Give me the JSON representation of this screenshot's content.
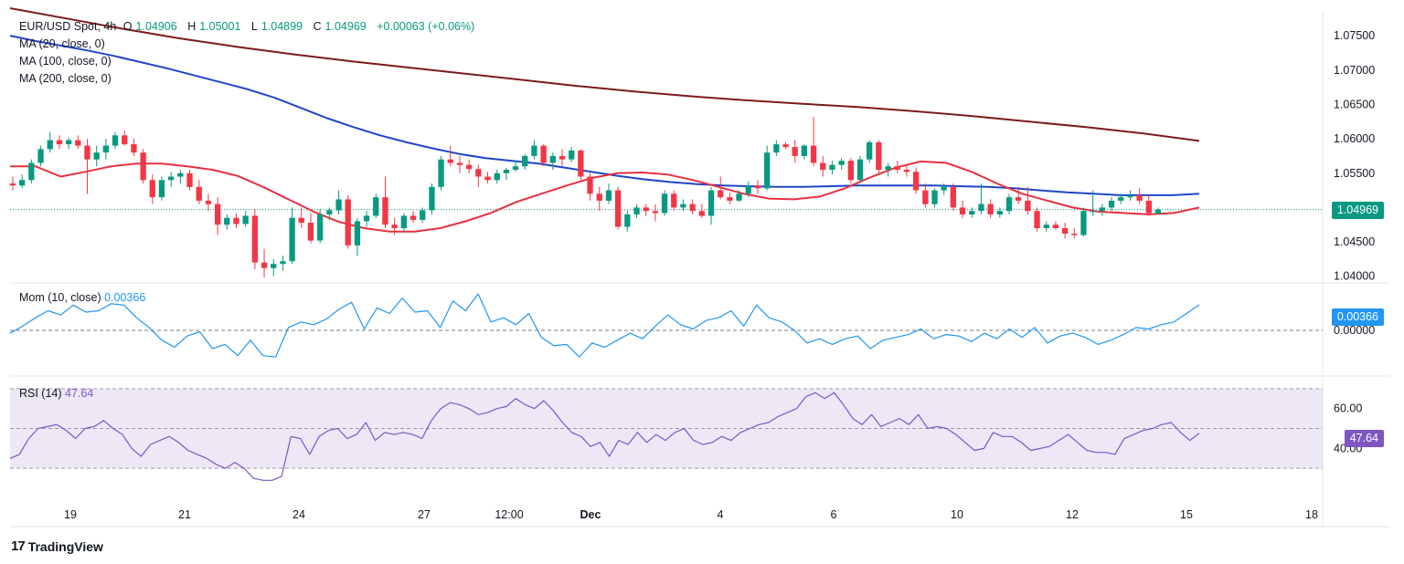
{
  "header": {
    "symbol": "EUR/USD Spot, 4h",
    "o_label": "O",
    "o_value": "1.04906",
    "h_label": "H",
    "h_value": "1.05001",
    "l_label": "L",
    "l_value": "1.04899",
    "c_label": "C",
    "c_value": "1.04969",
    "change": "+0.00063 (+0.06%)",
    "ma_lines": [
      "MA (20, close, 0)",
      "MA (100, close, 0)",
      "MA (200, close, 0)"
    ]
  },
  "momentum": {
    "label": "Mom (10, close)",
    "value": "0.00366",
    "tag": "0.00366",
    "zero_label": "0.00000"
  },
  "rsi": {
    "label": "RSI (14)",
    "value": "47.64",
    "tag": "47.64",
    "levels": [
      "60.00",
      "40.00"
    ]
  },
  "price_tag": "1.04969",
  "footer": {
    "logo_mark": "17",
    "brand": "TradingView"
  },
  "colors": {
    "up": "#089981",
    "down": "#f23645",
    "ma20": "#e8303f",
    "ma100": "#1f45c8",
    "ma200": "#7b1a1a",
    "momentum": "#2196f3",
    "rsi": "#7e57c2",
    "rsi_band": "#ede7f6"
  },
  "chart_data": {
    "type": "candlestick",
    "price_axis": {
      "ticks": [
        "1.07500",
        "1.07000",
        "1.06500",
        "1.06000",
        "1.05500",
        "1.05000",
        "1.04500",
        "1.04000"
      ],
      "range": [
        1.0393,
        1.0786
      ]
    },
    "time_axis": {
      "labels": [
        "19",
        "21",
        "24",
        "27",
        "12:00",
        "Dec",
        "4",
        "6",
        "10",
        "12",
        "15",
        "18"
      ]
    },
    "candles": [
      [
        1.0535,
        1.0545,
        1.0525,
        1.0532
      ],
      [
        1.0532,
        1.0548,
        1.0528,
        1.054
      ],
      [
        1.054,
        1.057,
        1.0535,
        1.0565
      ],
      [
        1.0565,
        1.059,
        1.056,
        1.0585
      ],
      [
        1.0585,
        1.061,
        1.058,
        1.0598
      ],
      [
        1.0598,
        1.0605,
        1.0585,
        1.0592
      ],
      [
        1.0592,
        1.0602,
        1.0585,
        1.0598
      ],
      [
        1.0598,
        1.0605,
        1.0585,
        1.059
      ],
      [
        1.059,
        1.06,
        1.052,
        1.057
      ],
      [
        1.057,
        1.059,
        1.056,
        1.058
      ],
      [
        1.058,
        1.06,
        1.057,
        1.059
      ],
      [
        1.059,
        1.061,
        1.0585,
        1.0605
      ],
      [
        1.0605,
        1.0612,
        1.059,
        1.0592
      ],
      [
        1.0592,
        1.06,
        1.0575,
        1.058
      ],
      [
        1.058,
        1.0585,
        1.0535,
        1.054
      ],
      [
        1.054,
        1.0548,
        1.0505,
        1.0515
      ],
      [
        1.0515,
        1.0545,
        1.051,
        1.054
      ],
      [
        1.054,
        1.0552,
        1.053,
        1.0545
      ],
      [
        1.0545,
        1.0555,
        1.0535,
        1.055
      ],
      [
        1.055,
        1.0555,
        1.0525,
        1.053
      ],
      [
        1.053,
        1.054,
        1.0505,
        1.051
      ],
      [
        1.051,
        1.052,
        1.0495,
        1.0505
      ],
      [
        1.0505,
        1.0515,
        1.046,
        1.0475
      ],
      [
        1.0475,
        1.049,
        1.0468,
        1.0485
      ],
      [
        1.0485,
        1.0492,
        1.047,
        1.0476
      ],
      [
        1.0476,
        1.0495,
        1.0472,
        1.0488
      ],
      [
        1.0488,
        1.0498,
        1.041,
        1.042
      ],
      [
        1.042,
        1.044,
        1.0398,
        1.0412
      ],
      [
        1.0412,
        1.0425,
        1.04,
        1.0418
      ],
      [
        1.0418,
        1.043,
        1.0408,
        1.0422
      ],
      [
        1.0422,
        1.05,
        1.0418,
        1.0485
      ],
      [
        1.0485,
        1.05,
        1.047,
        1.0478
      ],
      [
        1.0478,
        1.0492,
        1.0448,
        1.0452
      ],
      [
        1.0452,
        1.0498,
        1.0448,
        1.049
      ],
      [
        1.049,
        1.05,
        1.0482,
        1.0496
      ],
      [
        1.0496,
        1.0525,
        1.049,
        1.0512
      ],
      [
        1.0512,
        1.0518,
        1.044,
        1.0445
      ],
      [
        1.0445,
        1.0485,
        1.043,
        1.048
      ],
      [
        1.048,
        1.0495,
        1.0472,
        1.0488
      ],
      [
        1.0488,
        1.052,
        1.0485,
        1.0515
      ],
      [
        1.0515,
        1.0545,
        1.047,
        1.0475
      ],
      [
        1.0475,
        1.0485,
        1.046,
        1.047
      ],
      [
        1.047,
        1.0492,
        1.0465,
        1.0488
      ],
      [
        1.0488,
        1.0495,
        1.0478,
        1.0482
      ],
      [
        1.0482,
        1.05,
        1.0478,
        1.0496
      ],
      [
        1.0496,
        1.0535,
        1.049,
        1.053
      ],
      [
        1.053,
        1.0575,
        1.0525,
        1.057
      ],
      [
        1.057,
        1.059,
        1.056,
        1.0565
      ],
      [
        1.0565,
        1.0575,
        1.055,
        1.0562
      ],
      [
        1.0562,
        1.057,
        1.055,
        1.0556
      ],
      [
        1.0556,
        1.0562,
        1.053,
        1.0545
      ],
      [
        1.0545,
        1.0552,
        1.0535,
        1.054
      ],
      [
        1.054,
        1.0555,
        1.0535,
        1.055
      ],
      [
        1.055,
        1.0558,
        1.054,
        1.0555
      ],
      [
        1.0555,
        1.0568,
        1.0552,
        1.056
      ],
      [
        1.056,
        1.0578,
        1.0555,
        1.0575
      ],
      [
        1.0575,
        1.0598,
        1.057,
        1.059
      ],
      [
        1.059,
        1.0592,
        1.056,
        1.0565
      ],
      [
        1.0565,
        1.058,
        1.0555,
        1.0575
      ],
      [
        1.0575,
        1.0585,
        1.056,
        1.057
      ],
      [
        1.057,
        1.0588,
        1.0566,
        1.0583
      ],
      [
        1.0583,
        1.0585,
        1.054,
        1.0545
      ],
      [
        1.0545,
        1.055,
        1.051,
        1.052
      ],
      [
        1.052,
        1.053,
        1.0495,
        1.051
      ],
      [
        1.051,
        1.0535,
        1.0505,
        1.0525
      ],
      [
        1.0525,
        1.053,
        1.0468,
        1.0472
      ],
      [
        1.0472,
        1.0495,
        1.0465,
        1.049
      ],
      [
        1.049,
        1.0505,
        1.0485,
        1.05
      ],
      [
        1.05,
        1.0505,
        1.0488,
        1.0495
      ],
      [
        1.0495,
        1.0505,
        1.048,
        1.0492
      ],
      [
        1.0492,
        1.0525,
        1.0488,
        1.052
      ],
      [
        1.052,
        1.0525,
        1.0495,
        1.05
      ],
      [
        1.05,
        1.0512,
        1.0495,
        1.0505
      ],
      [
        1.0505,
        1.0512,
        1.049,
        1.0495
      ],
      [
        1.0495,
        1.0505,
        1.0485,
        1.0488
      ],
      [
        1.0488,
        1.053,
        1.0475,
        1.0525
      ],
      [
        1.0525,
        1.0545,
        1.0512,
        1.0515
      ],
      [
        1.0515,
        1.0522,
        1.0505,
        1.051
      ],
      [
        1.051,
        1.0525,
        1.0508,
        1.052
      ],
      [
        1.052,
        1.0538,
        1.0515,
        1.0532
      ],
      [
        1.0532,
        1.054,
        1.052,
        1.0528
      ],
      [
        1.0528,
        1.059,
        1.0525,
        1.058
      ],
      [
        1.058,
        1.0598,
        1.0575,
        1.0592
      ],
      [
        1.0592,
        1.0595,
        1.0585,
        1.0588
      ],
      [
        1.0588,
        1.0598,
        1.0565,
        1.0575
      ],
      [
        1.0575,
        1.0592,
        1.057,
        1.059
      ],
      [
        1.059,
        1.0632,
        1.056,
        1.0565
      ],
      [
        1.0565,
        1.0575,
        1.0545,
        1.0555
      ],
      [
        1.0555,
        1.0568,
        1.0548,
        1.0562
      ],
      [
        1.0562,
        1.0572,
        1.0555,
        1.0568
      ],
      [
        1.0568,
        1.0572,
        1.0535,
        1.054
      ],
      [
        1.054,
        1.0575,
        1.0538,
        1.057
      ],
      [
        1.057,
        1.0598,
        1.0565,
        1.0595
      ],
      [
        1.0595,
        1.0598,
        1.055,
        1.0555
      ],
      [
        1.0555,
        1.0565,
        1.0545,
        1.056
      ],
      [
        1.056,
        1.0568,
        1.055,
        1.0555
      ],
      [
        1.0555,
        1.0562,
        1.0545,
        1.0552
      ],
      [
        1.0552,
        1.0558,
        1.052,
        1.0525
      ],
      [
        1.0525,
        1.0535,
        1.05,
        1.0505
      ],
      [
        1.0505,
        1.0528,
        1.05,
        1.0525
      ],
      [
        1.0525,
        1.0535,
        1.0518,
        1.053
      ],
      [
        1.053,
        1.0535,
        1.0495,
        1.05
      ],
      [
        1.05,
        1.051,
        1.0485,
        1.049
      ],
      [
        1.049,
        1.05,
        1.0485,
        1.0495
      ],
      [
        1.0495,
        1.0535,
        1.049,
        1.0505
      ],
      [
        1.0505,
        1.0512,
        1.0485,
        1.049
      ],
      [
        1.049,
        1.05,
        1.0485,
        1.0495
      ],
      [
        1.0495,
        1.052,
        1.049,
        1.0515
      ],
      [
        1.0515,
        1.053,
        1.0505,
        1.051
      ],
      [
        1.051,
        1.053,
        1.049,
        1.0495
      ],
      [
        1.0495,
        1.05,
        1.0465,
        1.047
      ],
      [
        1.047,
        1.048,
        1.0465,
        1.0475
      ],
      [
        1.0475,
        1.048,
        1.0468,
        1.047
      ],
      [
        1.047,
        1.0478,
        1.0455,
        1.0462
      ],
      [
        1.0462,
        1.047,
        1.0455,
        1.046
      ],
      [
        1.046,
        1.05,
        1.0458,
        1.0495
      ],
      [
        1.0495,
        1.0525,
        1.0488,
        1.0495
      ],
      [
        1.0495,
        1.0505,
        1.0488,
        1.05
      ],
      [
        1.05,
        1.0515,
        1.0495,
        1.051
      ],
      [
        1.051,
        1.052,
        1.0505,
        1.0515
      ],
      [
        1.0515,
        1.0525,
        1.051,
        1.0518
      ],
      [
        1.0518,
        1.0528,
        1.0505,
        1.051
      ],
      [
        1.051,
        1.0518,
        1.0488,
        1.0492
      ],
      [
        1.0491,
        1.05,
        1.049,
        1.0497
      ]
    ],
    "ma20": [
      1.056,
      1.056,
      1.0545,
      1.0552,
      1.056,
      1.0564,
      1.0564,
      1.056,
      1.0555,
      1.0546,
      1.053,
      1.0512,
      1.0494,
      1.0479,
      1.047,
      1.0465,
      1.0465,
      1.047,
      1.048,
      1.0492,
      1.0508,
      1.052,
      1.0532,
      1.0543,
      1.055,
      1.0551,
      1.0548,
      1.054,
      1.053,
      1.052,
      1.0513,
      1.0512,
      1.0516,
      1.0528,
      1.0544,
      1.0558,
      1.0567,
      1.0565,
      1.0552,
      1.0535,
      1.052,
      1.051,
      1.05,
      1.0494,
      1.0492,
      1.049,
      1.0492,
      1.05
    ],
    "ma100": [
      1.075,
      1.0742,
      1.0735,
      1.0728,
      1.072,
      1.0711,
      1.0702,
      1.0692,
      1.0682,
      1.0672,
      1.066,
      1.0645,
      1.063,
      1.0617,
      1.0605,
      1.0595,
      1.0586,
      1.0578,
      1.0572,
      1.0568,
      1.0564,
      1.0558,
      1.0552,
      1.0546,
      1.0541,
      1.0537,
      1.0534,
      1.0532,
      1.0531,
      1.053,
      1.053,
      1.0531,
      1.0532,
      1.0532,
      1.0532,
      1.0532,
      1.0531,
      1.053,
      1.0528,
      1.0525,
      1.0522,
      1.052,
      1.0518,
      1.0518,
      1.0518,
      1.052
    ],
    "ma200": [
      1.079,
      1.0775,
      1.076,
      1.0746,
      1.0734,
      1.0723,
      1.0713,
      1.0704,
      1.0695,
      1.0686,
      1.0677,
      1.0669,
      1.0662,
      1.0656,
      1.0651,
      1.0646,
      1.064,
      1.0633,
      1.0625,
      1.0617,
      1.0608,
      1.0597
    ],
    "momentum": [
      -0.4,
      0.6,
      1.8,
      2.8,
      2.2,
      3.6,
      2.6,
      2.8,
      3.8,
      3.6,
      1.8,
      0.4,
      -1.4,
      -2.4,
      -0.8,
      -0.2,
      -2.6,
      -2.0,
      -3.6,
      -1.4,
      -3.6,
      -3.8,
      0.4,
      1.2,
      0.8,
      1.6,
      3.0,
      4.0,
      0.2,
      3.2,
      2.4,
      4.6,
      2.6,
      2.8,
      0.4,
      4.2,
      2.8,
      5.2,
      1.2,
      1.8,
      0.8,
      2.4,
      -1.0,
      -2.2,
      -2.0,
      -3.8,
      -1.8,
      -2.4,
      -1.4,
      -0.4,
      -1.2,
      0.6,
      2.2,
      0.8,
      0.2,
      1.4,
      1.8,
      2.8,
      0.6,
      3.6,
      1.8,
      1.2,
      0.0,
      -1.8,
      -1.2,
      -2.0,
      -1.2,
      -0.8,
      -2.6,
      -1.4,
      -1.0,
      -0.6,
      0.2,
      -1.2,
      -0.6,
      -0.8,
      -1.6,
      -0.4,
      -1.2,
      0.2,
      -1.0,
      0.4,
      -1.8,
      -0.8,
      -0.4,
      -1.0,
      -2.0,
      -1.4,
      -0.6,
      0.4,
      0.2,
      0.8,
      1.2,
      2.4,
      3.66
    ],
    "rsi": [
      35,
      37,
      45,
      50,
      51,
      52,
      49,
      45,
      50,
      51,
      54,
      50,
      47,
      40,
      36,
      42,
      44,
      46,
      43,
      39,
      37,
      35,
      32,
      30,
      33,
      30,
      25,
      24,
      24,
      26,
      46,
      45,
      37,
      46,
      49,
      50,
      45,
      47,
      53,
      44,
      48,
      47,
      48,
      47,
      45,
      54,
      60,
      63,
      62,
      60,
      57,
      58,
      60,
      61,
      65,
      62,
      60,
      64,
      59,
      53,
      48,
      46,
      41,
      43,
      36,
      44,
      42,
      48,
      43,
      47,
      44,
      48,
      50,
      44,
      42,
      43,
      46,
      44,
      48,
      50,
      52,
      53,
      56,
      58,
      60,
      66,
      68,
      65,
      68,
      62,
      55,
      52,
      57,
      51,
      53,
      55,
      52,
      57,
      50,
      51,
      50,
      47,
      43,
      39,
      40,
      48,
      46,
      46,
      43,
      39,
      40,
      41,
      44,
      47,
      43,
      39,
      38,
      38,
      37,
      45,
      47,
      49,
      50,
      52,
      53,
      48,
      44,
      47.64
    ]
  }
}
